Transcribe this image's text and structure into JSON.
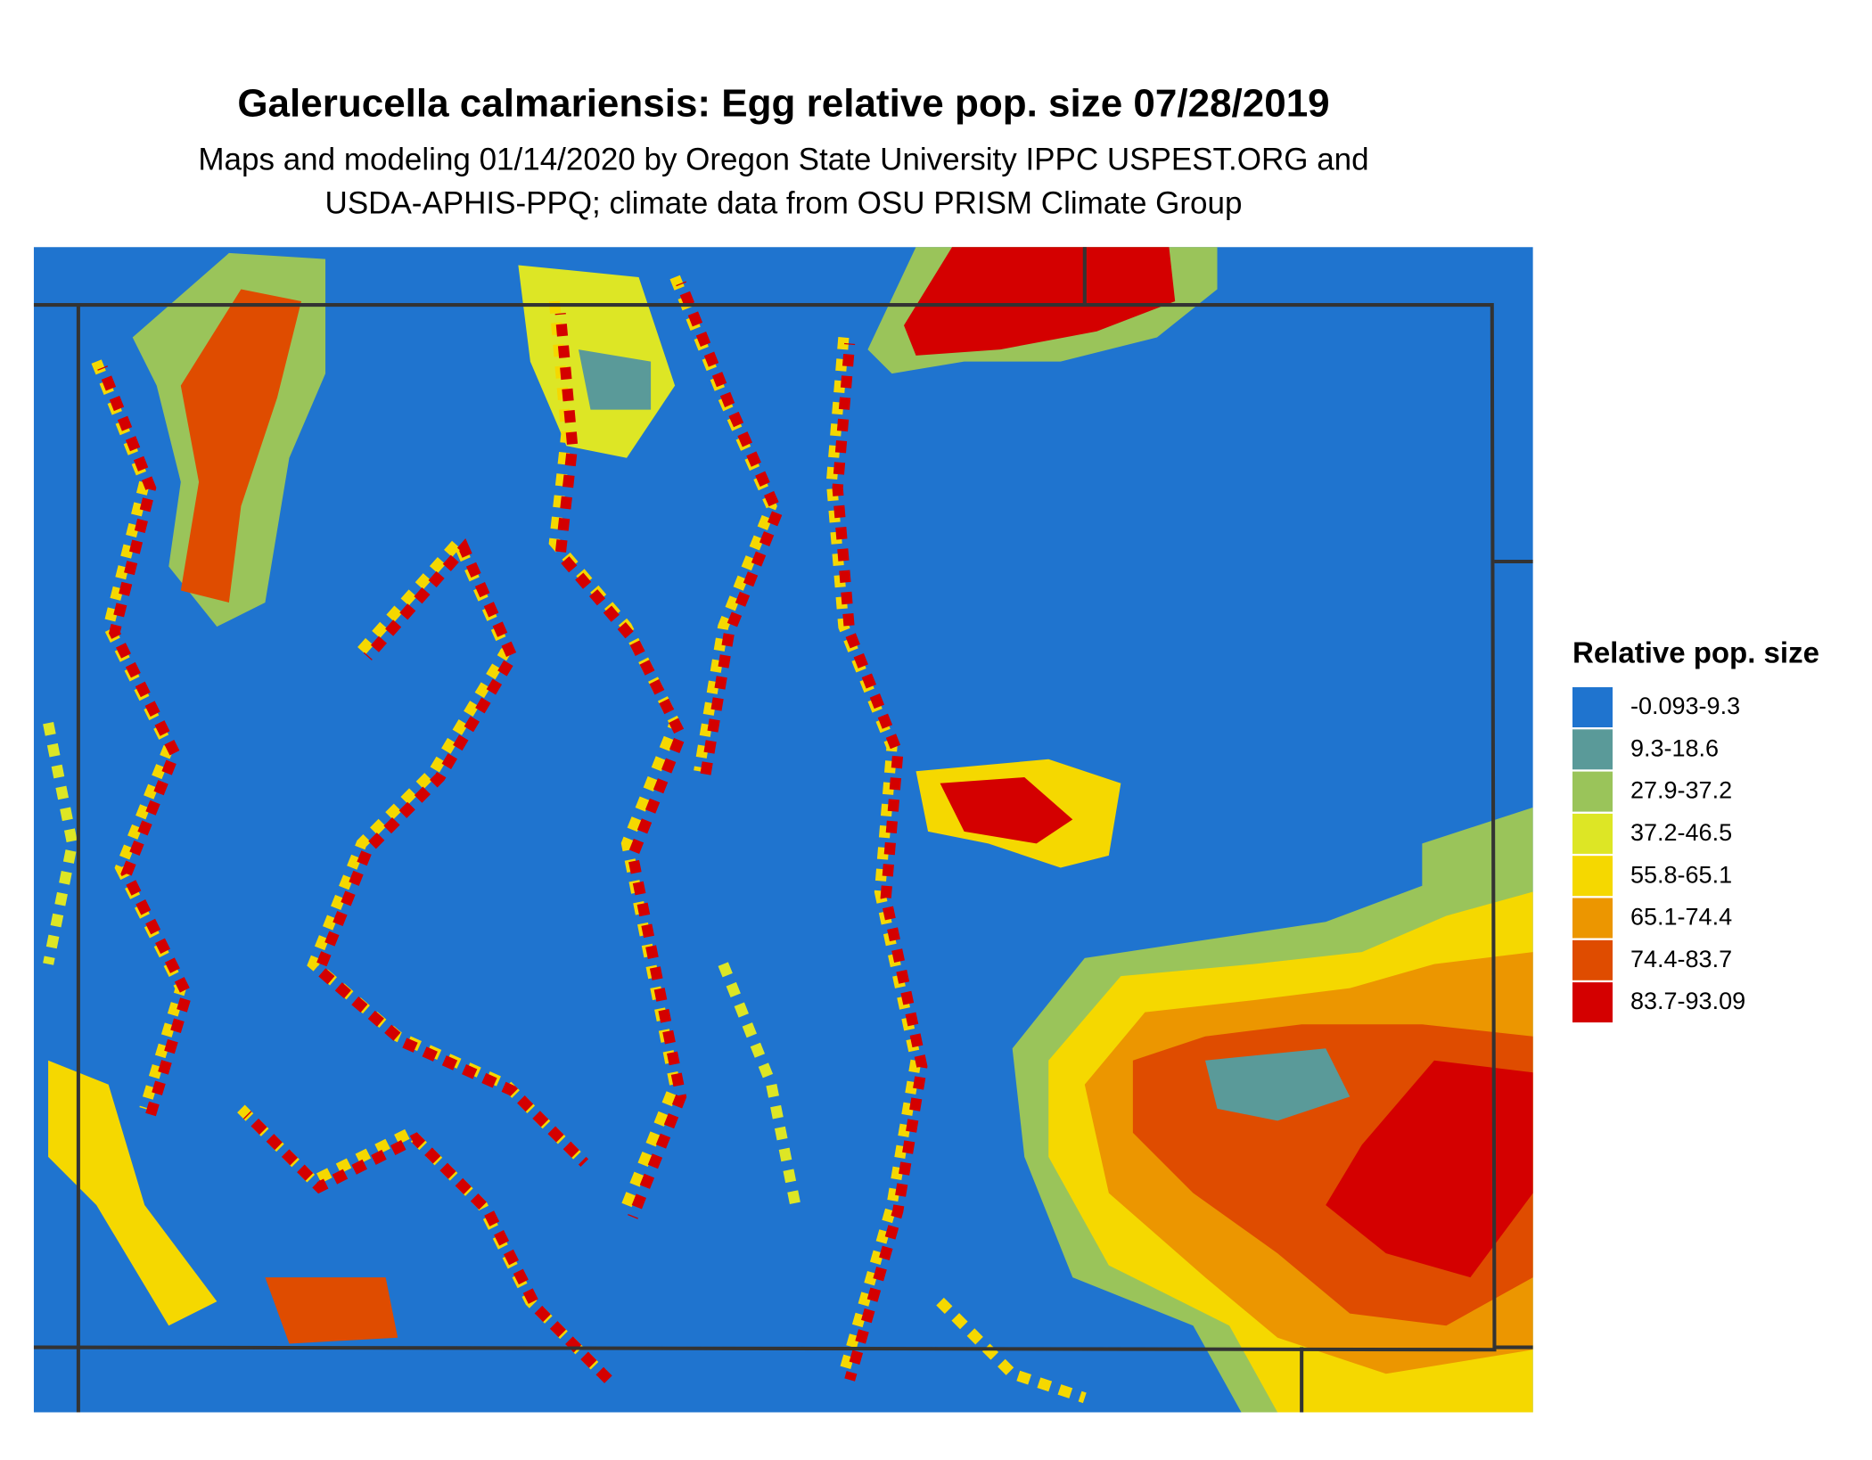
{
  "header": {
    "title": "Galerucella calmariensis: Egg relative pop. size 07/28/2019",
    "subtitle": [
      "Maps and modeling 01/14/2020 by Oregon State University IPPC USPEST.ORG and",
      "USDA-APHIS-PPQ; climate data from OSU PRISM Climate Group"
    ]
  },
  "legend": {
    "title": "Relative pop. size",
    "items": [
      {
        "label": "-0.093-9.3",
        "color": "#1f74cf"
      },
      {
        "label": "9.3-18.6",
        "color": "#5a9a99"
      },
      {
        "label": "27.9-37.2",
        "color": "#9ac45a"
      },
      {
        "label": "37.2-46.5",
        "color": "#dde625"
      },
      {
        "label": "55.8-65.1",
        "color": "#f5d800"
      },
      {
        "label": "65.1-74.4",
        "color": "#ec9600"
      },
      {
        "label": "74.4-83.7",
        "color": "#df4c00"
      },
      {
        "label": "83.7-93.09",
        "color": "#d40000"
      }
    ]
  }
}
